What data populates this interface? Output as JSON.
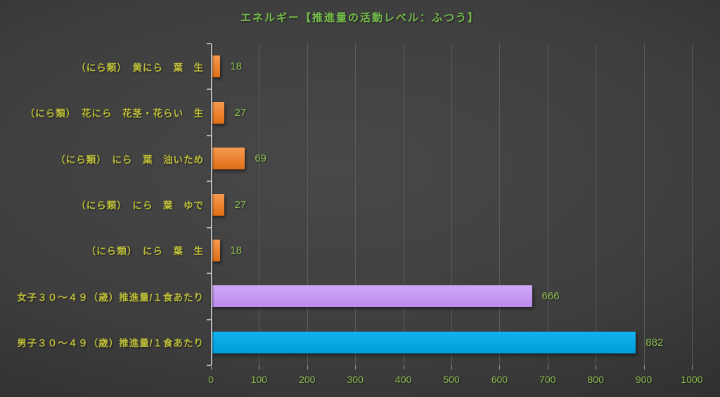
{
  "chart_data": {
    "type": "bar",
    "orientation": "horizontal",
    "title": "エネルギー【推進量の活動レベル：ふつう】",
    "categories": [
      "（にら類）　黄にら　葉　生",
      "（にら類）　花にら　花茎・花らい　生",
      "（にら類）　にら　葉　油いため",
      "（にら類）　にら　葉　ゆで",
      "（にら類）　にら　葉　生",
      "女子３０～４９（歳）推進量/１食あたり",
      "男子３０～４９（歳）推進量/１食あたり"
    ],
    "values": [
      18,
      27,
      69,
      27,
      18,
      666,
      882
    ],
    "value_labels": [
      "18",
      "27",
      "69",
      "27",
      "18",
      "666",
      "882"
    ],
    "xlim": [
      0,
      1000
    ],
    "xticks": [
      "0",
      "100",
      "200",
      "300",
      "400",
      "500",
      "600",
      "700",
      "800",
      "900",
      "1000"
    ],
    "grid": true,
    "legend": "none",
    "bar_color_keys": [
      "orange",
      "orange",
      "orange",
      "orange",
      "orange",
      "purple",
      "blue"
    ],
    "colors": {
      "orange": {
        "top": "#F89B51",
        "bottom": "#E06E15"
      },
      "purple": {
        "top": "#CEA8F8",
        "bottom": "#BC8BEB"
      },
      "blue": {
        "top": "#12B2EF",
        "bottom": "#009FDB"
      }
    },
    "style": {
      "title_color": "#77BF4B",
      "value_label_color": "#8DC050",
      "category_label_color": "#BFBF3B",
      "axis_tick_label_color": "#8DC050"
    }
  }
}
